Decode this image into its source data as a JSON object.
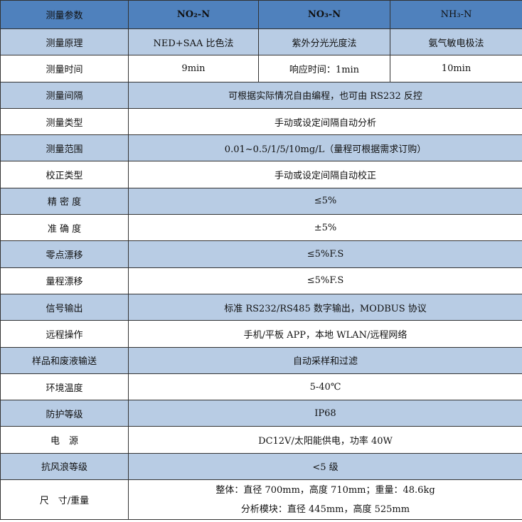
{
  "header": {
    "label": "测量参数",
    "columns": [
      "NO₂-N",
      "NO₃-N",
      "NH₃-N"
    ]
  },
  "principle": {
    "label": "测量原理",
    "values": [
      "NED+SAA 比色法",
      "紫外分光光度法",
      "氨气敏电极法"
    ]
  },
  "time": {
    "label": "测量时间",
    "values": [
      "9min",
      "响应时间：1min",
      "10min"
    ]
  },
  "rows": [
    {
      "label": "测量间隔",
      "value": "可根据实际情况自由编程，也可由 RS232 反控"
    },
    {
      "label": "测量类型",
      "value": "手动或设定间隔自动分析"
    },
    {
      "label": "测量范围",
      "value": "0.01~0.5/1/5/10mg/L（量程可根据需求订购）"
    },
    {
      "label": "校正类型",
      "value": "手动或设定间隔自动校正"
    },
    {
      "label": "精 密 度",
      "value": "≤5%"
    },
    {
      "label": "准 确 度",
      "value": "±5%"
    },
    {
      "label": "零点漂移",
      "value": "≤5%F.S"
    },
    {
      "label": "量程漂移",
      "value": "≤5%F.S"
    },
    {
      "label": "信号输出",
      "value": "标准 RS232/RS485 数字输出，MODBUS 协议"
    },
    {
      "label": "远程操作",
      "value": "手机/平板 APP，本地 WLAN/远程网络"
    },
    {
      "label": "样品和废液输送",
      "value": "自动采样和过滤"
    },
    {
      "label": "环境温度",
      "value": "5-40℃"
    },
    {
      "label": "防护等级",
      "value": "IP68"
    },
    {
      "label": "电　源",
      "value": "DC12V/太阳能供电，功率 40W"
    },
    {
      "label": "抗风浪等级",
      "value": "<5 级"
    }
  ],
  "size": {
    "label": "尺　寸/重量",
    "lines": [
      "整体：直径 700mm，高度 710mm；重量：48.6kg",
      "分析模块：直径 445mm，高度 525mm"
    ]
  },
  "colors": {
    "header": "#4f81bd",
    "band": "#b8cce4",
    "white": "#ffffff"
  }
}
